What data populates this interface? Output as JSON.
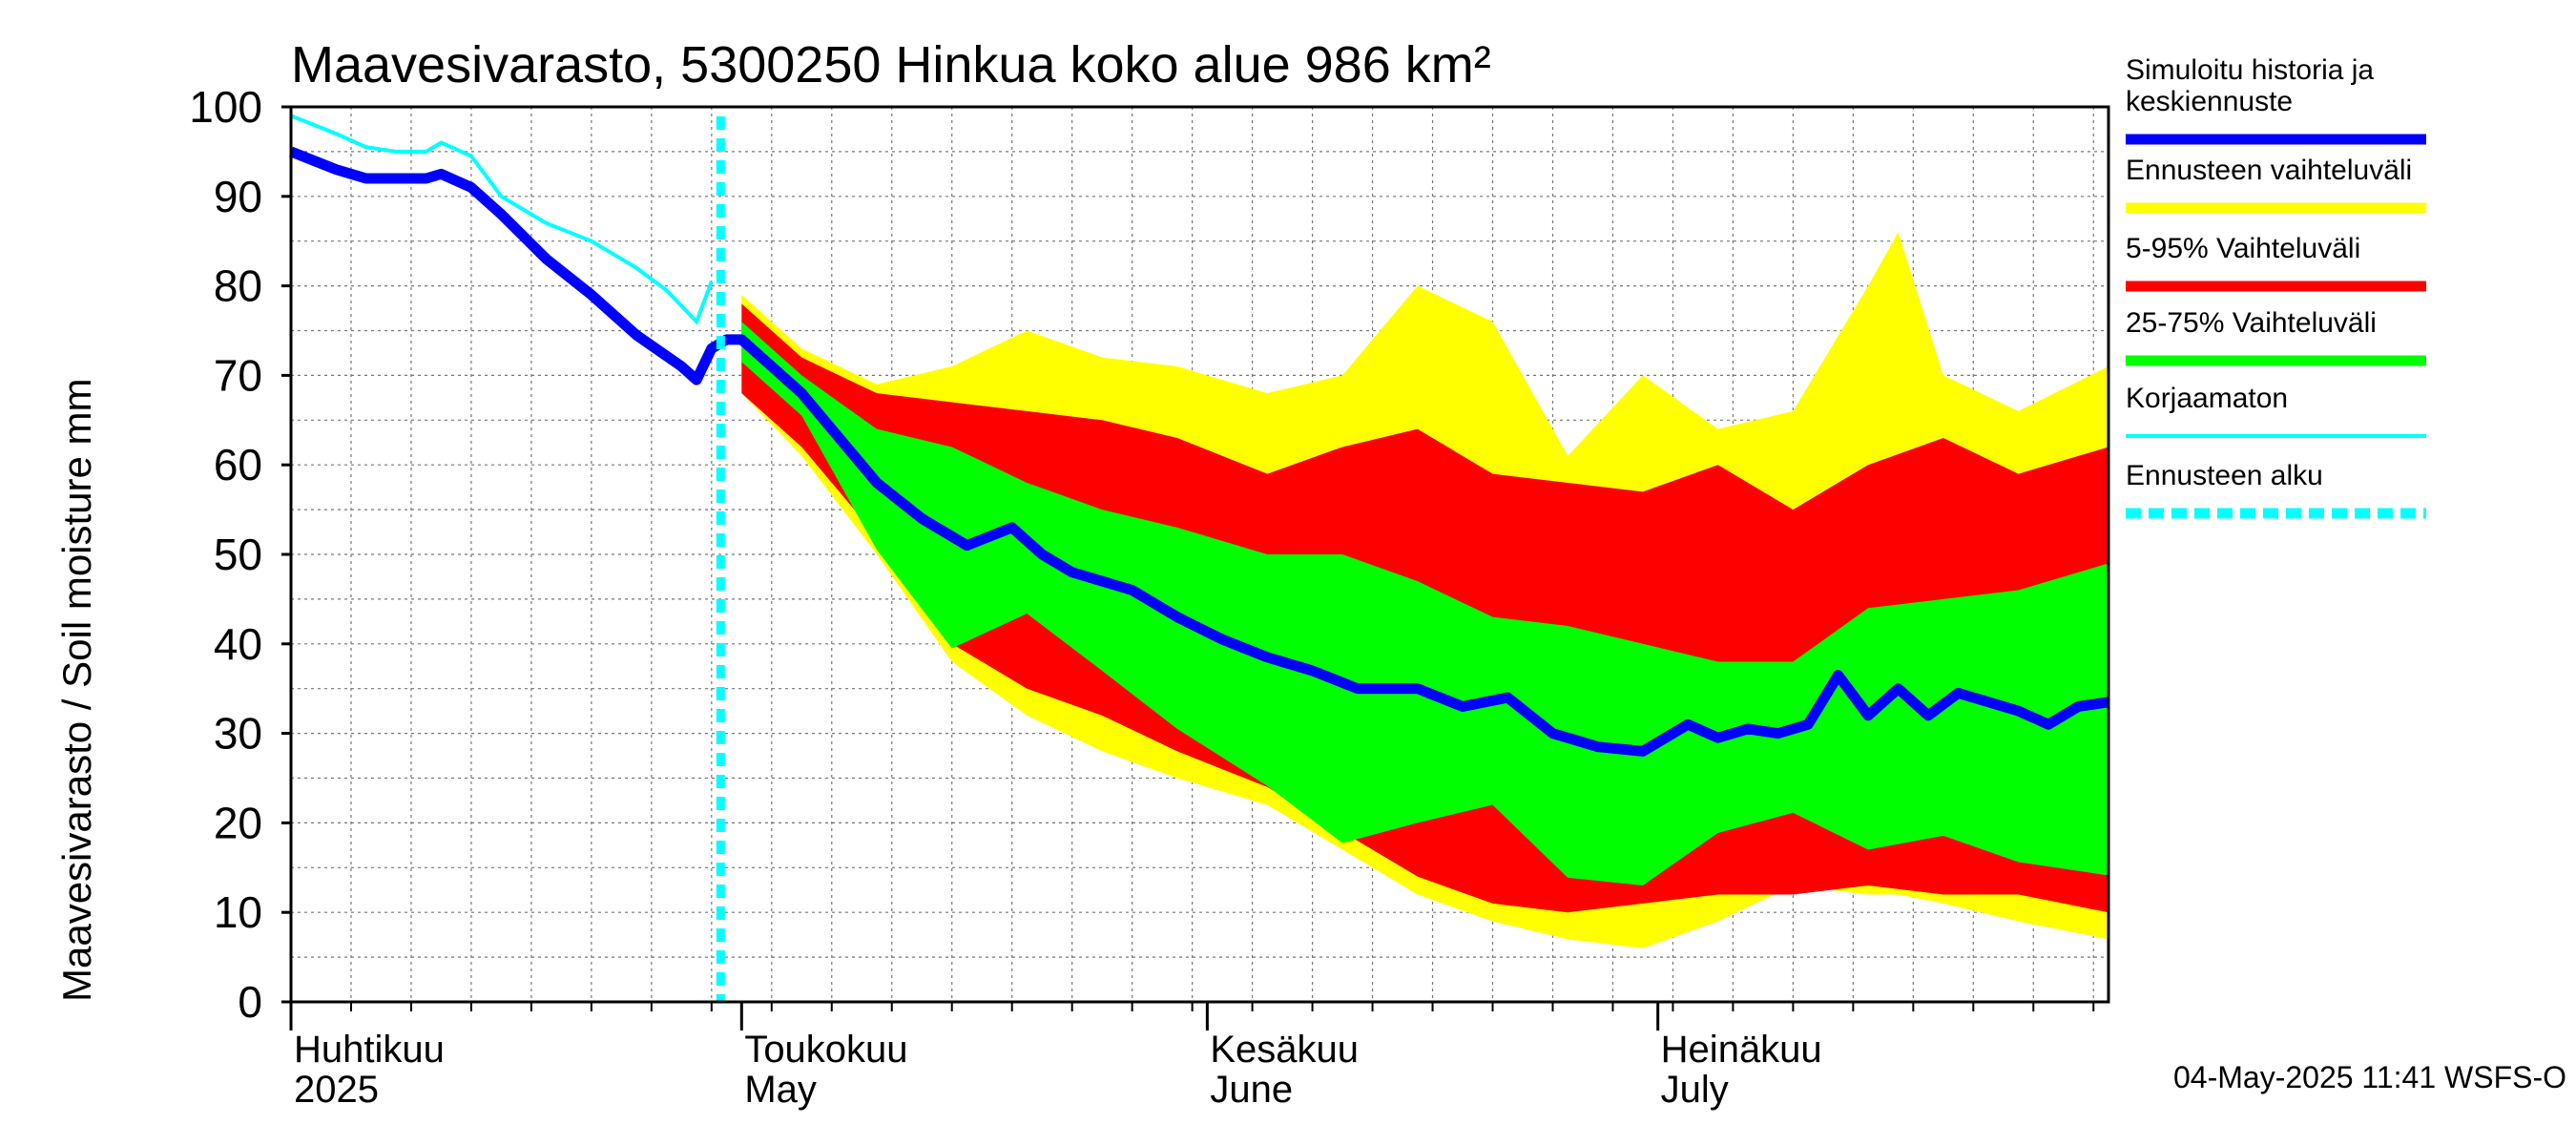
{
  "chart_data": {
    "type": "area",
    "title": "Maavesivarasto, 5300250 Hinkua koko alue 986 km²",
    "ylabel": "Maavesivarasto / Soil moisture   mm",
    "xlabel": "",
    "ylim": [
      0,
      100
    ],
    "yticks": [
      0,
      10,
      20,
      30,
      40,
      50,
      60,
      70,
      80,
      90,
      100
    ],
    "xlim": [
      "2025-04-01",
      "2025-07-31"
    ],
    "grid": true,
    "forecast_start": "2025-05-01",
    "x_month_labels": [
      {
        "date": "2025-04-01",
        "fi": "Huhtikuu",
        "en": "2025"
      },
      {
        "date": "2025-05-01",
        "fi": "Toukokuu",
        "en": "May"
      },
      {
        "date": "2025-06-01",
        "fi": "Kesäkuu",
        "en": "June"
      },
      {
        "date": "2025-07-01",
        "fi": "Heinäkuu",
        "en": "July"
      }
    ],
    "legend": [
      {
        "label": "Simuloitu historia ja keskiennuste",
        "color": "#0000ff"
      },
      {
        "label": "Ennusteen vaihteluväli",
        "color": "#ffff00"
      },
      {
        "label": "5-95% Vaihteluväli",
        "color": "#ff0000"
      },
      {
        "label": "25-75% Vaihteluväli",
        "color": "#00ff00"
      },
      {
        "label": "Korjaamaton",
        "color": "#00ffff"
      },
      {
        "label": "Ennusteen alku",
        "color": "#00ffff"
      }
    ],
    "timestamp": "04-May-2025 11:41 WSFS-O",
    "series": [
      {
        "name": "Simuloitu historia ja keskiennuste",
        "color": "#0000ff",
        "x": [
          "2025-04-01",
          "2025-04-04",
          "2025-04-06",
          "2025-04-10",
          "2025-04-11",
          "2025-04-13",
          "2025-04-15",
          "2025-04-18",
          "2025-04-21",
          "2025-04-24",
          "2025-04-27",
          "2025-04-28",
          "2025-04-29",
          "2025-04-30",
          "2025-05-01",
          "2025-05-05",
          "2025-05-08",
          "2025-05-10",
          "2025-05-13",
          "2025-05-16",
          "2025-05-19",
          "2025-05-21",
          "2025-05-23",
          "2025-05-25",
          "2025-05-27",
          "2025-05-30",
          "2025-06-02",
          "2025-06-05",
          "2025-06-08",
          "2025-06-11",
          "2025-06-15",
          "2025-06-18",
          "2025-06-21",
          "2025-06-24",
          "2025-06-27",
          "2025-06-30",
          "2025-07-03",
          "2025-07-05",
          "2025-07-07",
          "2025-07-09",
          "2025-07-11",
          "2025-07-13",
          "2025-07-15",
          "2025-07-17",
          "2025-07-19",
          "2025-07-21",
          "2025-07-23",
          "2025-07-25",
          "2025-07-27",
          "2025-07-29",
          "2025-07-31"
        ],
        "y": [
          95,
          93,
          92,
          92,
          92.5,
          91,
          88,
          83,
          79,
          74.5,
          71,
          69.5,
          73,
          74,
          74,
          68,
          62,
          58,
          54,
          51,
          53,
          50,
          48,
          47,
          46,
          43,
          40.5,
          38.5,
          37,
          35,
          35,
          33,
          34,
          30,
          28.5,
          28,
          31,
          29.5,
          30.5,
          30,
          31,
          36.5,
          32,
          35,
          32,
          34.5,
          33.5,
          32.5,
          31,
          33,
          33.5
        ]
      },
      {
        "name": "Korjaamaton",
        "color": "#00ffff",
        "x": [
          "2025-04-01",
          "2025-04-04",
          "2025-04-06",
          "2025-04-08",
          "2025-04-10",
          "2025-04-11",
          "2025-04-13",
          "2025-04-15",
          "2025-04-18",
          "2025-04-21",
          "2025-04-24",
          "2025-04-26",
          "2025-04-28",
          "2025-04-29"
        ],
        "y": [
          99,
          97,
          95.5,
          95,
          95,
          96,
          94.5,
          90,
          87,
          85,
          82,
          79.5,
          76,
          80.5
        ]
      },
      {
        "name": "Ennusteen vaihteluväli",
        "color": "#ffff00",
        "x": [
          "2025-05-01",
          "2025-05-05",
          "2025-05-10",
          "2025-05-15",
          "2025-05-20",
          "2025-05-25",
          "2025-05-30",
          "2025-06-05",
          "2025-06-10",
          "2025-06-15",
          "2025-06-20",
          "2025-06-25",
          "2025-06-30",
          "2025-07-05",
          "2025-07-10",
          "2025-07-15",
          "2025-07-17",
          "2025-07-20",
          "2025-07-25",
          "2025-07-31"
        ],
        "upper": [
          79,
          73,
          69,
          71,
          75,
          72,
          71,
          68,
          70,
          80,
          76,
          61,
          70,
          64,
          66,
          80,
          86,
          70,
          66,
          71
        ],
        "lower": [
          68,
          61,
          50,
          38,
          32,
          28,
          25,
          22,
          17,
          12,
          9,
          7,
          6,
          9,
          13,
          12,
          12,
          11,
          9,
          7
        ]
      },
      {
        "name": "5-95% Vaihteluväli",
        "color": "#ff0000",
        "x": [
          "2025-05-01",
          "2025-05-05",
          "2025-05-10",
          "2025-05-15",
          "2025-05-20",
          "2025-05-25",
          "2025-05-30",
          "2025-06-05",
          "2025-06-10",
          "2025-06-15",
          "2025-06-20",
          "2025-06-25",
          "2025-06-30",
          "2025-07-05",
          "2025-07-10",
          "2025-07-15",
          "2025-07-20",
          "2025-07-25",
          "2025-07-31"
        ],
        "upper": [
          78,
          72,
          68,
          67,
          66,
          65,
          63,
          59,
          62,
          64,
          59,
          58,
          57,
          60,
          55,
          60,
          63,
          59,
          62
        ],
        "lower": [
          68,
          62,
          52,
          40,
          35,
          32,
          28,
          24,
          19,
          14,
          11,
          10,
          11,
          12,
          12,
          13,
          12,
          12,
          10
        ]
      },
      {
        "name": "25-75% Vaihteluväli",
        "color": "#00ff00",
        "x": [
          "2025-05-01",
          "2025-05-05",
          "2025-05-10",
          "2025-05-15",
          "2025-05-20",
          "2025-05-25",
          "2025-05-30",
          "2025-06-05",
          "2025-06-10",
          "2025-06-15",
          "2025-06-20",
          "2025-06-25",
          "2025-06-30",
          "2025-07-05",
          "2025-07-10",
          "2025-07-15",
          "2025-07-20",
          "2025-07-25",
          "2025-07-31"
        ],
        "upper": [
          76,
          70,
          64,
          62,
          58,
          55,
          53,
          50,
          50,
          47,
          43,
          42,
          40,
          38,
          38,
          44,
          45,
          46,
          49
        ]
      }
    ]
  }
}
